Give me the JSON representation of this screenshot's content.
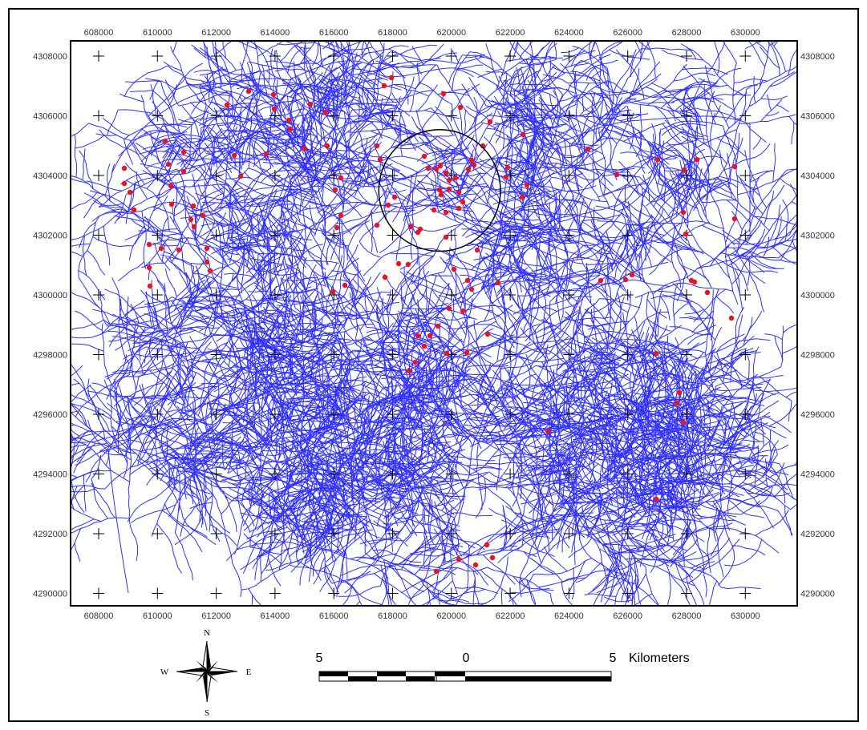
{
  "map": {
    "x_axis": {
      "ticks": [
        "608000",
        "610000",
        "612000",
        "614000",
        "616000",
        "618000",
        "620000",
        "622000",
        "624000",
        "626000",
        "628000",
        "630000"
      ]
    },
    "y_axis": {
      "ticks": [
        "4308000",
        "4306000",
        "4304000",
        "4302000",
        "4300000",
        "4298000",
        "4296000",
        "4294000",
        "4292000",
        "4290000"
      ]
    },
    "colors": {
      "streams": "#3030ff",
      "points": "#e8141e",
      "frame": "#000000",
      "grid_cross": "#000000"
    },
    "highlight_circle": {
      "center_easting": 619600,
      "center_northing": 4303500,
      "radius_m": 1800
    }
  },
  "legend": {
    "compass": {
      "north": "N",
      "south": "S",
      "east": "E",
      "west": "W",
      "icon": "north-arrow-compass-rose"
    },
    "scale_bar": {
      "left_label": "5",
      "middle_label": "0",
      "right_label": "5",
      "unit_label": "Kilometers"
    }
  }
}
